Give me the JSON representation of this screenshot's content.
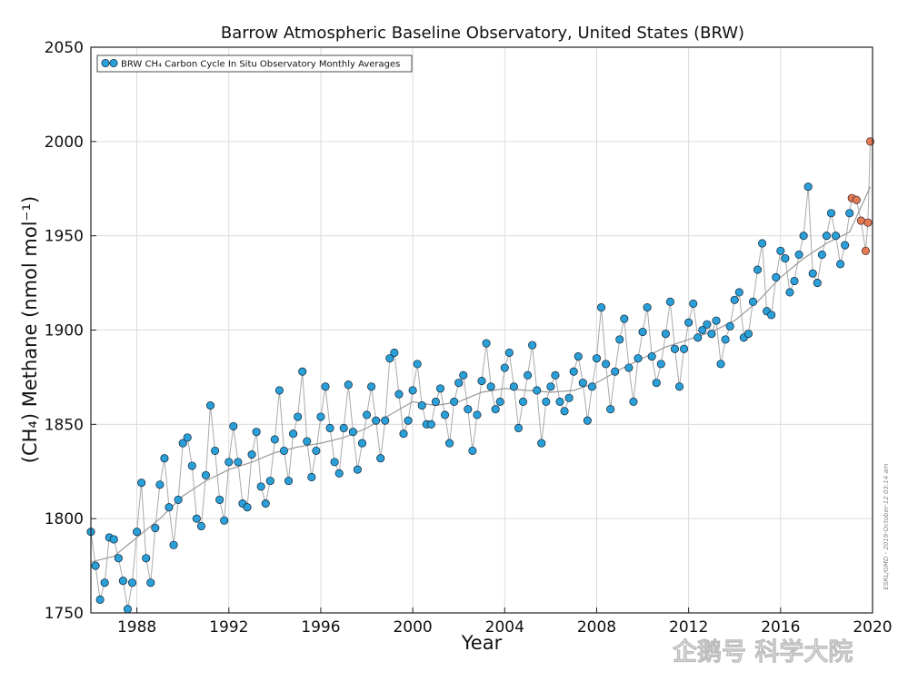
{
  "watermark": "企鹅号 科学大院",
  "chart_data": {
    "type": "scatter",
    "title": "Barrow Atmospheric Baseline Observatory, United States (BRW)",
    "xlabel": "Year",
    "ylabel": "(CH₄) Methane (nmol mol⁻¹)",
    "xlim": [
      1986,
      2020
    ],
    "ylim": [
      1750,
      2050
    ],
    "x_ticks": [
      "1988",
      "1992",
      "1996",
      "2000",
      "2004",
      "2008",
      "2012",
      "2016",
      "2020"
    ],
    "y_ticks": [
      "1750",
      "1800",
      "1850",
      "1900",
      "1950",
      "2000",
      "2050"
    ],
    "legend": "BRW CH₄ Carbon Cycle In Situ Observatory Monthly Averages",
    "stamp": "ESRL/GMD - 2019-October-12 03:14 am",
    "grid": true,
    "colors": {
      "series": "#2a9fd8",
      "preliminary": "#e07b54",
      "trend": "#999999"
    },
    "series": [
      {
        "name": "Monthly averages",
        "x": [
          1986.0,
          1986.2,
          1986.4,
          1986.6,
          1986.8,
          1987.0,
          1987.2,
          1987.4,
          1987.6,
          1987.8,
          1988.0,
          1988.2,
          1988.4,
          1988.6,
          1988.8,
          1989.0,
          1989.2,
          1989.4,
          1989.6,
          1989.8,
          1990.0,
          1990.2,
          1990.4,
          1990.6,
          1990.8,
          1991.0,
          1991.2,
          1991.4,
          1991.6,
          1991.8,
          1992.0,
          1992.2,
          1992.4,
          1992.6,
          1992.8,
          1993.0,
          1993.2,
          1993.4,
          1993.6,
          1993.8,
          1994.0,
          1994.2,
          1994.4,
          1994.6,
          1994.8,
          1995.0,
          1995.2,
          1995.4,
          1995.6,
          1995.8,
          1996.0,
          1996.2,
          1996.4,
          1996.6,
          1996.8,
          1997.0,
          1997.2,
          1997.4,
          1997.6,
          1997.8,
          1998.0,
          1998.2,
          1998.4,
          1998.6,
          1998.8,
          1999.0,
          1999.2,
          1999.4,
          1999.6,
          1999.8,
          2000.0,
          2000.2,
          2000.4,
          2000.6,
          2000.8,
          2001.0,
          2001.2,
          2001.4,
          2001.6,
          2001.8,
          2002.0,
          2002.2,
          2002.4,
          2002.6,
          2002.8,
          2003.0,
          2003.2,
          2003.4,
          2003.6,
          2003.8,
          2004.0,
          2004.2,
          2004.4,
          2004.6,
          2004.8,
          2005.0,
          2005.2,
          2005.4,
          2005.6,
          2005.8,
          2006.0,
          2006.2,
          2006.4,
          2006.6,
          2006.8,
          2007.0,
          2007.2,
          2007.4,
          2007.6,
          2007.8,
          2008.0,
          2008.2,
          2008.4,
          2008.6,
          2008.8,
          2009.0,
          2009.2,
          2009.4,
          2009.6,
          2009.8,
          2010.0,
          2010.2,
          2010.4,
          2010.6,
          2010.8,
          2011.0,
          2011.2,
          2011.4,
          2011.6,
          2011.8,
          2012.0,
          2012.2,
          2012.4,
          2012.6,
          2012.8,
          2013.0,
          2013.2,
          2013.4,
          2013.6,
          2013.8,
          2014.0,
          2014.2,
          2014.4,
          2014.6,
          2014.8,
          2015.0,
          2015.2,
          2015.4,
          2015.6,
          2015.8,
          2016.0,
          2016.2,
          2016.4,
          2016.6,
          2016.8,
          2017.0,
          2017.2,
          2017.4,
          2017.6,
          2017.8,
          2018.0,
          2018.2,
          2018.4,
          2018.6,
          2018.8,
          2019.0
        ],
        "y": [
          1793,
          1775,
          1757,
          1766,
          1790,
          1789,
          1779,
          1767,
          1752,
          1766,
          1793,
          1819,
          1779,
          1766,
          1795,
          1818,
          1832,
          1806,
          1786,
          1810,
          1840,
          1843,
          1828,
          1800,
          1796,
          1823,
          1860,
          1836,
          1810,
          1799,
          1830,
          1849,
          1830,
          1808,
          1806,
          1834,
          1846,
          1817,
          1808,
          1820,
          1842,
          1868,
          1836,
          1820,
          1845,
          1854,
          1878,
          1841,
          1822,
          1836,
          1854,
          1870,
          1848,
          1830,
          1824,
          1848,
          1871,
          1846,
          1826,
          1840,
          1855,
          1870,
          1852,
          1832,
          1852,
          1885,
          1888,
          1866,
          1845,
          1852,
          1868,
          1882,
          1860,
          1850,
          1850,
          1862,
          1869,
          1855,
          1840,
          1862,
          1872,
          1876,
          1858,
          1836,
          1855,
          1873,
          1893,
          1870,
          1858,
          1862,
          1880,
          1888,
          1870,
          1848,
          1862,
          1876,
          1892,
          1868,
          1840,
          1862,
          1870,
          1876,
          1862,
          1857,
          1864,
          1878,
          1886,
          1872,
          1852,
          1870,
          1885,
          1912,
          1882,
          1858,
          1878,
          1895,
          1906,
          1880,
          1862,
          1885,
          1899,
          1912,
          1886,
          1872,
          1882,
          1898,
          1915,
          1890,
          1870,
          1890,
          1904,
          1914,
          1896,
          1900,
          1903,
          1898,
          1905,
          1882,
          1895,
          1902,
          1916,
          1920,
          1896,
          1898,
          1915,
          1932,
          1946,
          1910,
          1908,
          1928,
          1942,
          1938,
          1920,
          1926,
          1940,
          1950,
          1976,
          1930,
          1925,
          1940,
          1950,
          1962,
          1950,
          1935,
          1945,
          1962
        ]
      },
      {
        "name": "Preliminary",
        "x": [
          2019.1,
          2019.3,
          2019.5,
          2019.7,
          2019.8,
          2019.9
        ],
        "y": [
          1970,
          1969,
          1958,
          1942,
          1957,
          2000
        ]
      }
    ],
    "trend": {
      "x": [
        1986.0,
        1987.0,
        1988.0,
        1989.0,
        1990.0,
        1991.0,
        1992.0,
        1993.0,
        1994.0,
        1995.0,
        1996.0,
        1997.0,
        1998.0,
        1999.0,
        2000.0,
        2001.0,
        2002.0,
        2003.0,
        2004.0,
        2005.0,
        2006.0,
        2007.0,
        2008.0,
        2009.0,
        2010.0,
        2011.0,
        2012.0,
        2013.0,
        2014.0,
        2015.0,
        2016.0,
        2017.0,
        2018.0,
        2019.0,
        2019.9
      ],
      "y": [
        1777,
        1780,
        1790,
        1800,
        1812,
        1820,
        1826,
        1830,
        1835,
        1838,
        1840,
        1843,
        1848,
        1855,
        1862,
        1860,
        1862,
        1867,
        1869,
        1868,
        1867,
        1868,
        1872,
        1879,
        1885,
        1891,
        1895,
        1899,
        1905,
        1915,
        1928,
        1938,
        1946,
        1952,
        1976
      ]
    }
  }
}
